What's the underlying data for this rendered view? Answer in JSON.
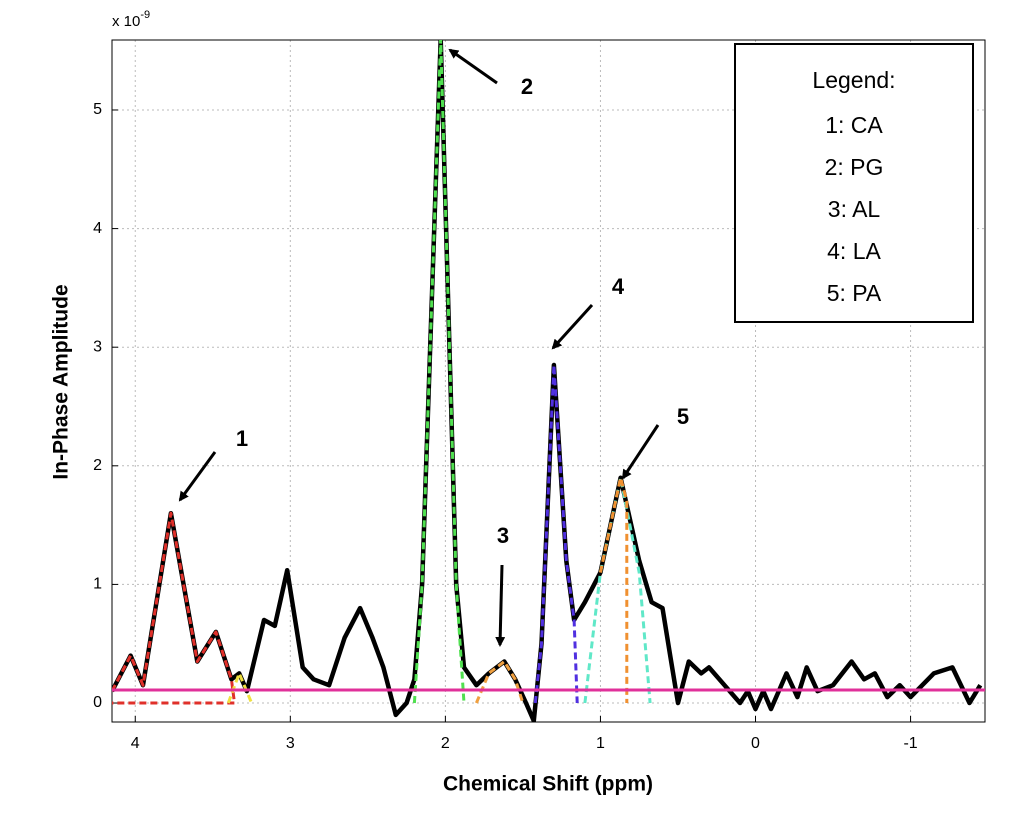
{
  "chart_data": {
    "type": "line",
    "x_label": "Chemical Shift (ppm)",
    "y_label": "In-Phase Amplitude",
    "y_multiplier": {
      "base": "x 10",
      "exponent": "-9"
    },
    "xlim": [
      4.15,
      -1.48
    ],
    "ylim": [
      -0.16,
      5.59
    ],
    "xticks": [
      4,
      3,
      2,
      1,
      0,
      -1
    ],
    "yticks": [
      0,
      1,
      2,
      3,
      4,
      5
    ],
    "grid": true,
    "series": [
      {
        "color": "#000000",
        "style": "solid",
        "x": [
          4.15,
          4.03,
          3.95,
          3.77,
          3.6,
          3.48,
          3.38,
          3.33,
          3.28,
          3.17,
          3.1,
          3.02,
          2.92,
          2.85,
          2.75,
          2.65,
          2.55,
          2.47,
          2.4,
          2.32,
          2.25,
          2.2,
          2.15,
          2.03,
          1.93,
          1.88,
          1.8,
          1.72,
          1.62,
          1.55,
          1.48,
          1.43,
          1.38,
          1.3,
          1.22,
          1.17,
          1.1,
          1.0,
          0.87,
          0.75,
          0.67,
          0.6,
          0.55,
          0.5,
          0.43,
          0.35,
          0.3,
          0.2,
          0.1,
          0.05,
          0.0,
          -0.05,
          -0.1,
          -0.2,
          -0.27,
          -0.33,
          -0.4,
          -0.5,
          -0.62,
          -0.7,
          -0.77,
          -0.85,
          -0.93,
          -1.0,
          -1.15,
          -1.27,
          -1.38,
          -1.45
        ],
        "values": [
          0.1,
          0.4,
          0.15,
          1.6,
          0.35,
          0.6,
          0.2,
          0.25,
          0.1,
          0.7,
          0.65,
          1.12,
          0.3,
          0.2,
          0.15,
          0.55,
          0.8,
          0.55,
          0.3,
          -0.1,
          0.0,
          0.2,
          1.0,
          5.6,
          1.0,
          0.3,
          0.15,
          0.25,
          0.35,
          0.2,
          0.0,
          -0.15,
          0.5,
          2.85,
          1.2,
          0.7,
          0.85,
          1.1,
          1.9,
          1.2,
          0.85,
          0.8,
          0.4,
          0.0,
          0.35,
          0.25,
          0.3,
          0.15,
          0.0,
          0.1,
          -0.05,
          0.1,
          -0.05,
          0.25,
          0.05,
          0.3,
          0.1,
          0.15,
          0.35,
          0.2,
          0.25,
          0.05,
          0.15,
          0.05,
          0.25,
          0.3,
          0.0,
          0.15
        ]
      },
      {
        "color": "#e0302a",
        "style": "dashed",
        "x": [
          4.15,
          4.03,
          3.95,
          3.77,
          3.6,
          3.48,
          3.38,
          3.36,
          4.15
        ],
        "values": [
          0.1,
          0.4,
          0.15,
          1.6,
          0.35,
          0.6,
          0.2,
          0.0,
          0.0
        ]
      },
      {
        "color": "#f0e040",
        "style": "dashed",
        "x": [
          3.4,
          3.33,
          3.25
        ],
        "values": [
          0.0,
          0.25,
          0.0
        ]
      },
      {
        "color": "#50e050",
        "style": "dashed",
        "x": [
          2.2,
          2.15,
          2.03,
          1.93,
          1.88
        ],
        "values": [
          0.0,
          1.0,
          5.6,
          1.0,
          0.0
        ]
      },
      {
        "color": "#f0a040",
        "style": "dashed",
        "x": [
          1.8,
          1.72,
          1.62,
          1.55,
          1.5
        ],
        "values": [
          0.0,
          0.25,
          0.35,
          0.2,
          0.0
        ]
      },
      {
        "color": "#5030e0",
        "style": "dashed",
        "x": [
          1.42,
          1.38,
          1.3,
          1.22,
          1.17,
          1.15
        ],
        "values": [
          0.0,
          0.5,
          2.85,
          1.2,
          0.7,
          0.0
        ]
      },
      {
        "color": "#60e8c8",
        "style": "dashed",
        "x": [
          1.1,
          1.0,
          0.87,
          0.75,
          0.68
        ],
        "values": [
          0.0,
          1.1,
          1.9,
          1.1,
          0.0
        ]
      },
      {
        "color": "#f09030",
        "style": "dashed",
        "x": [
          1.0,
          0.87,
          0.83,
          0.83
        ],
        "values": [
          1.1,
          1.9,
          1.7,
          0.0
        ]
      },
      {
        "color": "#e0309a",
        "style": "solid",
        "x": [
          4.15,
          -1.48
        ],
        "values": [
          0.11,
          0.11
        ]
      }
    ],
    "annotations": [
      "1",
      "2",
      "3",
      "4",
      "5"
    ],
    "legend": {
      "title": "Legend:",
      "items": [
        "1: CA",
        "2: PG",
        "3: AL",
        "4: LA",
        "5: PA"
      ]
    }
  }
}
